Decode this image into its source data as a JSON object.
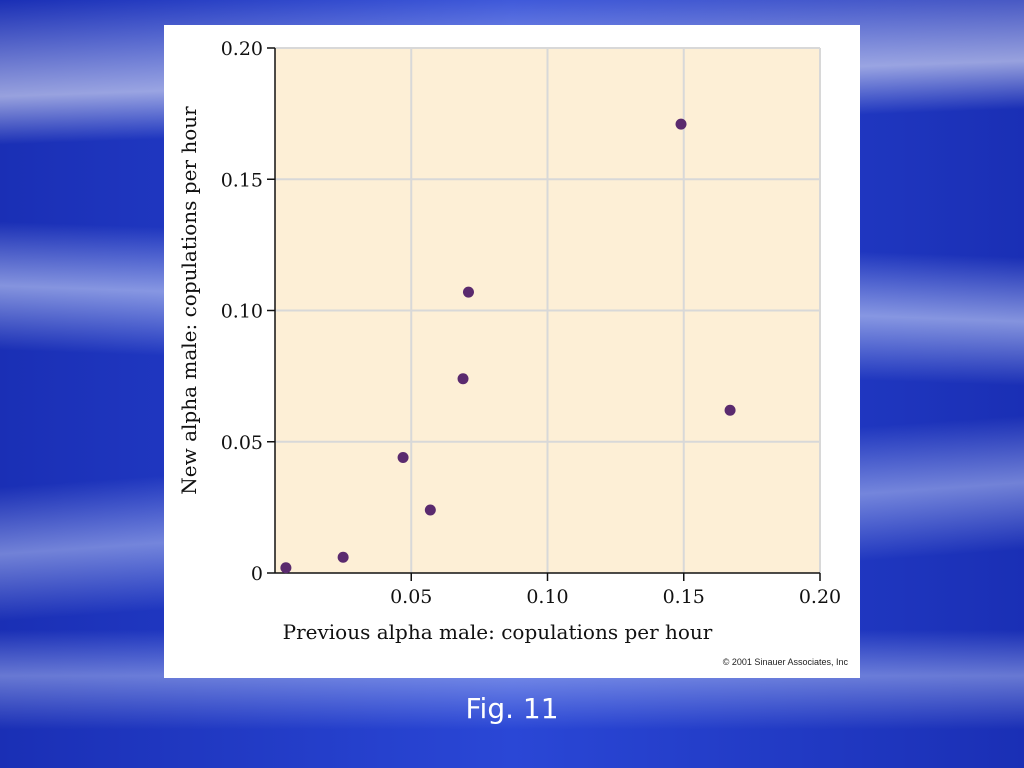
{
  "caption": "Fig. 11",
  "credit": "© 2001 Sinauer Associates, Inc",
  "colors": {
    "plot_background": "#fdefd6",
    "grid": "#d8d8d8",
    "point": "#5a2a6e",
    "slide_background": "#2a47d6"
  },
  "chart_data": {
    "type": "scatter",
    "xlabel": "Previous alpha male: copulations per hour",
    "ylabel": "New alpha male: copulations per hour",
    "xlim": [
      0,
      0.2
    ],
    "ylim": [
      0,
      0.2
    ],
    "x_ticks": [
      "0.05",
      "0.10",
      "0.15",
      "0.20"
    ],
    "y_ticks": [
      "0",
      "0.05",
      "0.10",
      "0.15",
      "0.20"
    ],
    "grid": true,
    "points": [
      {
        "x": 0.004,
        "y": 0.002
      },
      {
        "x": 0.025,
        "y": 0.006
      },
      {
        "x": 0.047,
        "y": 0.044
      },
      {
        "x": 0.057,
        "y": 0.024
      },
      {
        "x": 0.069,
        "y": 0.074
      },
      {
        "x": 0.071,
        "y": 0.107
      },
      {
        "x": 0.149,
        "y": 0.171
      },
      {
        "x": 0.167,
        "y": 0.062
      }
    ]
  }
}
